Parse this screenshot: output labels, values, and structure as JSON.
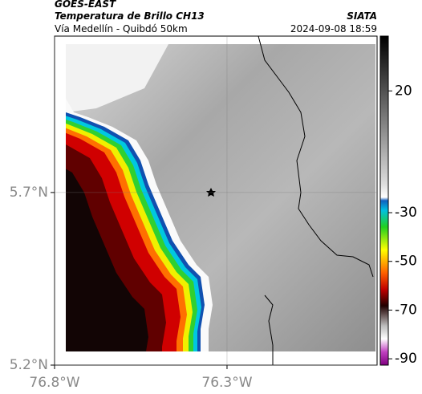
{
  "header": {
    "satellite": "GOES-EAST",
    "title": "Temperatura de Brillo CH13",
    "subtitle": "Vía Medellín - Quibdó 50km",
    "source": "SIATA",
    "datetime": "2024-09-08 18:59"
  },
  "map": {
    "xlim": [
      -76.8,
      -75.865
    ],
    "ylim": [
      5.2,
      6.153
    ],
    "xticks": [
      {
        "value": -76.8,
        "label": "76.8°W"
      },
      {
        "value": -76.3,
        "label": "76.3°W"
      }
    ],
    "yticks": [
      {
        "value": 5.2,
        "label": "5.2°N"
      },
      {
        "value": 5.7,
        "label": "5.7°N"
      }
    ],
    "grid": true
  },
  "colorbar": {
    "lim": [
      -92.6,
      42.5
    ],
    "ticks": [
      20,
      -30,
      -50,
      -70,
      -90
    ]
  }
}
